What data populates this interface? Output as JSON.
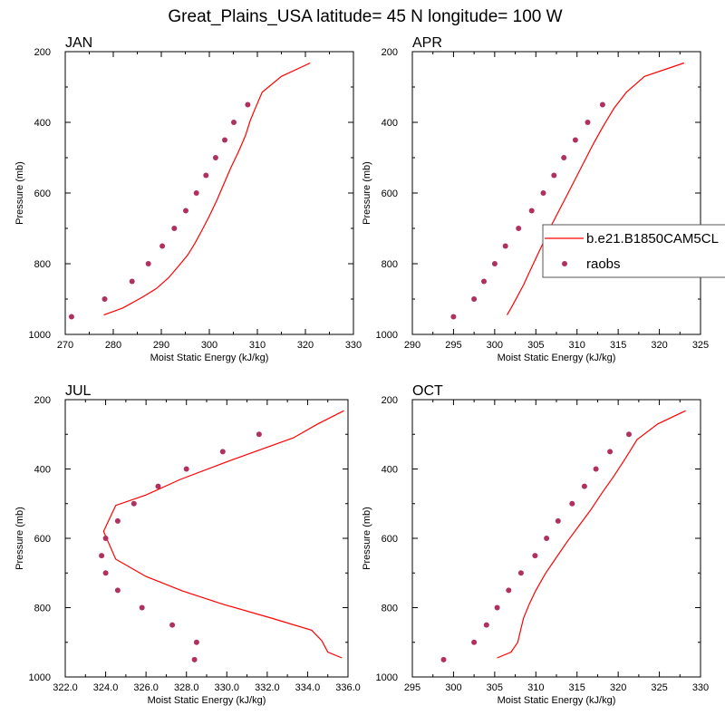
{
  "figure_title": "Great_Plains_USA  latitude= 45 N longitude= 100 W",
  "colors": {
    "model": "#ff0000",
    "obs": "#b03060",
    "axis": "#000000"
  },
  "legend": {
    "panel_index": 1,
    "entries": [
      {
        "label": "b.e21.B1850CAM5CL",
        "kind": "line"
      },
      {
        "label": "raobs",
        "kind": "marker"
      }
    ]
  },
  "chart_data": [
    {
      "type": "line",
      "title": "JAN",
      "xlabel": "Moist Static Energy (kJ/kg)",
      "ylabel": "Pressure (mb)",
      "xlim": [
        270,
        330
      ],
      "ylim": [
        1000,
        200
      ],
      "xticks": [
        270,
        280,
        290,
        300,
        310,
        320,
        330
      ],
      "xtick_labels": [
        "270",
        "280",
        "290",
        "300",
        "310",
        "320",
        "330"
      ],
      "yticks": [
        200,
        400,
        600,
        800,
        1000
      ],
      "ytick_labels": [
        "200",
        "400",
        "600",
        "800",
        "1000"
      ],
      "series": [
        {
          "name": "b.e21.B1850CAM5CL",
          "kind": "line",
          "points": [
            [
              278,
              945
            ],
            [
              282,
              925
            ],
            [
              286,
              895
            ],
            [
              289,
              870
            ],
            [
              291.5,
              840
            ],
            [
              293.5,
              808
            ],
            [
              295.5,
              775
            ],
            [
              297,
              742
            ],
            [
              298.5,
              705
            ],
            [
              300,
              665
            ],
            [
              301.5,
              622
            ],
            [
              303,
              575
            ],
            [
              304.5,
              528
            ],
            [
              306,
              485
            ],
            [
              307.5,
              438
            ],
            [
              308.5,
              395
            ],
            [
              309.5,
              362
            ],
            [
              311,
              315
            ],
            [
              315,
              270
            ],
            [
              321,
              232
            ]
          ]
        },
        {
          "name": "raobs",
          "kind": "scatter",
          "points": [
            [
              271.3,
              950
            ],
            [
              278.2,
              900
            ],
            [
              283.9,
              850
            ],
            [
              287.3,
              800
            ],
            [
              290.2,
              750
            ],
            [
              292.7,
              700
            ],
            [
              295.1,
              650
            ],
            [
              297.3,
              600
            ],
            [
              299.3,
              550
            ],
            [
              301.3,
              500
            ],
            [
              303.2,
              450
            ],
            [
              305.1,
              400
            ],
            [
              308,
              350
            ]
          ]
        }
      ]
    },
    {
      "type": "line",
      "title": "APR",
      "xlabel": "Moist Static Energy (kJ/kg)",
      "ylabel": "Pressure (mb)",
      "xlim": [
        290,
        325
      ],
      "ylim": [
        1000,
        200
      ],
      "xticks": [
        290,
        295,
        300,
        305,
        310,
        315,
        320,
        325
      ],
      "xtick_labels": [
        "290",
        "295",
        "300",
        "305",
        "310",
        "315",
        "320",
        "325"
      ],
      "yticks": [
        200,
        400,
        600,
        800,
        1000
      ],
      "ytick_labels": [
        "200",
        "400",
        "600",
        "800",
        "1000"
      ],
      "series": [
        {
          "name": "b.e21.B1850CAM5CL",
          "kind": "line",
          "points": [
            [
              301.5,
              945
            ],
            [
              302,
              925
            ],
            [
              302.7,
              895
            ],
            [
              303.5,
              860
            ],
            [
              304.3,
              820
            ],
            [
              305,
              785
            ],
            [
              305.8,
              745
            ],
            [
              306.7,
              700
            ],
            [
              307.7,
              655
            ],
            [
              308.7,
              610
            ],
            [
              309.8,
              560
            ],
            [
              310.9,
              510
            ],
            [
              312,
              460
            ],
            [
              313.2,
              410
            ],
            [
              314.5,
              360
            ],
            [
              316,
              315
            ],
            [
              318.2,
              270
            ],
            [
              323,
              232
            ]
          ]
        },
        {
          "name": "raobs",
          "kind": "scatter",
          "points": [
            [
              295,
              950
            ],
            [
              297.5,
              900
            ],
            [
              298.7,
              850
            ],
            [
              300,
              800
            ],
            [
              301.3,
              750
            ],
            [
              302.9,
              700
            ],
            [
              304.5,
              650
            ],
            [
              305.9,
              600
            ],
            [
              307.2,
              550
            ],
            [
              308.4,
              500
            ],
            [
              309.8,
              450
            ],
            [
              311.3,
              400
            ],
            [
              313.1,
              350
            ]
          ]
        }
      ]
    },
    {
      "type": "line",
      "title": "JUL",
      "xlabel": "Moist Static Energy (kJ/kg)",
      "ylabel": "Pressure (mb)",
      "xlim": [
        322,
        336
      ],
      "ylim": [
        1000,
        200
      ],
      "xticks": [
        322,
        324,
        326,
        328,
        330,
        332,
        334,
        336
      ],
      "xtick_labels": [
        "322.0",
        "324.0",
        "326.0",
        "328.0",
        "330.0",
        "332.0",
        "334.0",
        "336.0"
      ],
      "yticks": [
        200,
        400,
        600,
        800,
        1000
      ],
      "ytick_labels": [
        "200",
        "400",
        "600",
        "800",
        "1000"
      ],
      "series": [
        {
          "name": "b.e21.B1850CAM5CL",
          "kind": "line",
          "points": [
            [
              335.7,
              945
            ],
            [
              335,
              928
            ],
            [
              334.7,
              895
            ],
            [
              334.2,
              865
            ],
            [
              332.2,
              830
            ],
            [
              329.8,
              790
            ],
            [
              327.8,
              752
            ],
            [
              326,
              710
            ],
            [
              324.5,
              660
            ],
            [
              323.9,
              580
            ],
            [
              324.5,
              505
            ],
            [
              326,
              475
            ],
            [
              327.7,
              430
            ],
            [
              330.2,
              375
            ],
            [
              333.3,
              310
            ],
            [
              334.5,
              270
            ],
            [
              335.8,
              232
            ]
          ]
        },
        {
          "name": "raobs",
          "kind": "scatter",
          "points": [
            [
              328.4,
              950
            ],
            [
              328.5,
              900
            ],
            [
              327.3,
              850
            ],
            [
              325.8,
              800
            ],
            [
              324.6,
              750
            ],
            [
              324,
              700
            ],
            [
              323.8,
              650
            ],
            [
              324,
              600
            ],
            [
              324.6,
              550
            ],
            [
              325.4,
              500
            ],
            [
              326.6,
              450
            ],
            [
              328,
              400
            ],
            [
              329.8,
              350
            ],
            [
              331.6,
              300
            ]
          ]
        }
      ]
    },
    {
      "type": "line",
      "title": "OCT",
      "xlabel": "Moist Static Energy (kJ/kg)",
      "ylabel": "Pressure (mb)",
      "xlim": [
        295,
        330
      ],
      "ylim": [
        1000,
        200
      ],
      "xticks": [
        295,
        300,
        305,
        310,
        315,
        320,
        325,
        330
      ],
      "xtick_labels": [
        "295",
        "300",
        "305",
        "310",
        "315",
        "320",
        "325",
        "330"
      ],
      "yticks": [
        200,
        400,
        600,
        800,
        1000
      ],
      "ytick_labels": [
        "200",
        "400",
        "600",
        "800",
        "1000"
      ],
      "series": [
        {
          "name": "b.e21.B1850CAM5CL",
          "kind": "line",
          "points": [
            [
              305.3,
              945
            ],
            [
              307,
              928
            ],
            [
              307.8,
              900
            ],
            [
              308.2,
              860
            ],
            [
              308.5,
              830
            ],
            [
              309.2,
              790
            ],
            [
              310,
              750
            ],
            [
              311.2,
              700
            ],
            [
              312.5,
              655
            ],
            [
              313.8,
              610
            ],
            [
              315.2,
              565
            ],
            [
              316.6,
              520
            ],
            [
              318,
              470
            ],
            [
              319.5,
              420
            ],
            [
              321,
              365
            ],
            [
              322.3,
              315
            ],
            [
              324.8,
              270
            ],
            [
              328.2,
              232
            ]
          ]
        },
        {
          "name": "raobs",
          "kind": "scatter",
          "points": [
            [
              298.8,
              950
            ],
            [
              302.5,
              900
            ],
            [
              304,
              850
            ],
            [
              305.3,
              800
            ],
            [
              306.7,
              750
            ],
            [
              308.2,
              700
            ],
            [
              309.9,
              650
            ],
            [
              311.3,
              600
            ],
            [
              312.7,
              550
            ],
            [
              314.4,
              500
            ],
            [
              315.9,
              450
            ],
            [
              317.3,
              400
            ],
            [
              319,
              350
            ],
            [
              321.3,
              300
            ]
          ]
        }
      ]
    }
  ]
}
